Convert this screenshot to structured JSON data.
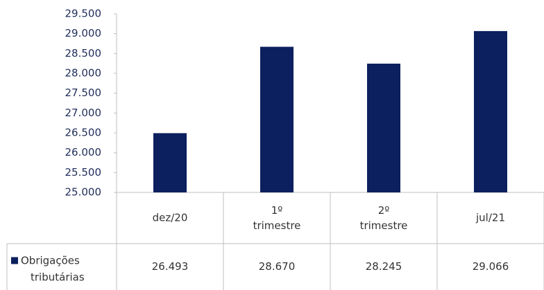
{
  "chart_data": {
    "type": "bar",
    "categories": [
      "dez/20",
      "1º trimestre",
      "2º trimestre",
      "jul/21"
    ],
    "series": [
      {
        "name": "Obrigações tributárias",
        "color": "#0c1f5e",
        "values": [
          26493,
          28670,
          28245,
          29066
        ],
        "value_labels": [
          "26.493",
          "28.670",
          "28.245",
          "29.066"
        ]
      }
    ],
    "ylim": [
      25000,
      29500
    ],
    "yticks": [
      {
        "value": 25000,
        "label": "25.000"
      },
      {
        "value": 25500,
        "label": "25.500"
      },
      {
        "value": 26000,
        "label": "26.000"
      },
      {
        "value": 26500,
        "label": "26.500"
      },
      {
        "value": 27000,
        "label": "27.000"
      },
      {
        "value": 27500,
        "label": "27.500"
      },
      {
        "value": 28000,
        "label": "28.000"
      },
      {
        "value": 28500,
        "label": "28.500"
      },
      {
        "value": 29000,
        "label": "29.000"
      },
      {
        "value": 29500,
        "label": "29.500"
      }
    ],
    "grid": false,
    "data_table": true
  }
}
